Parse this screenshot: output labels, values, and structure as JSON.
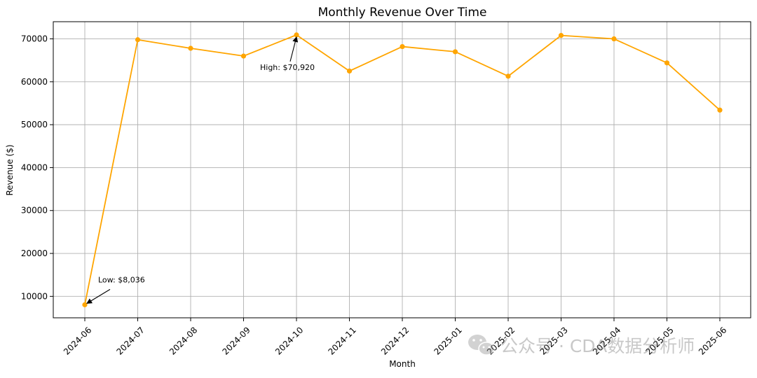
{
  "chart_data": {
    "type": "line",
    "title": "Monthly Revenue Over Time",
    "xlabel": "Month",
    "ylabel": "Revenue ($)",
    "categories": [
      "2024-06",
      "2024-07",
      "2024-08",
      "2024-09",
      "2024-10",
      "2024-11",
      "2024-12",
      "2025-01",
      "2025-02",
      "2025-03",
      "2025-04",
      "2025-05",
      "2025-06"
    ],
    "series": [
      {
        "values": [
          8036,
          69800,
          67800,
          66000,
          70920,
          62500,
          68200,
          67000,
          61300,
          70800,
          70000,
          64400,
          53400
        ],
        "color": "#FFA500"
      }
    ],
    "ylim": [
      5000,
      74000
    ],
    "yticks": [
      10000,
      20000,
      30000,
      40000,
      50000,
      60000,
      70000
    ],
    "grid": true,
    "annotations": [
      {
        "text": "High: $70,920",
        "index": 4,
        "value": 70920
      },
      {
        "text": "Low: $8,036",
        "index": 0,
        "value": 8036
      }
    ]
  },
  "watermark": {
    "text": "公众号 · CDA数据分析师",
    "icon": "wechat-icon"
  }
}
